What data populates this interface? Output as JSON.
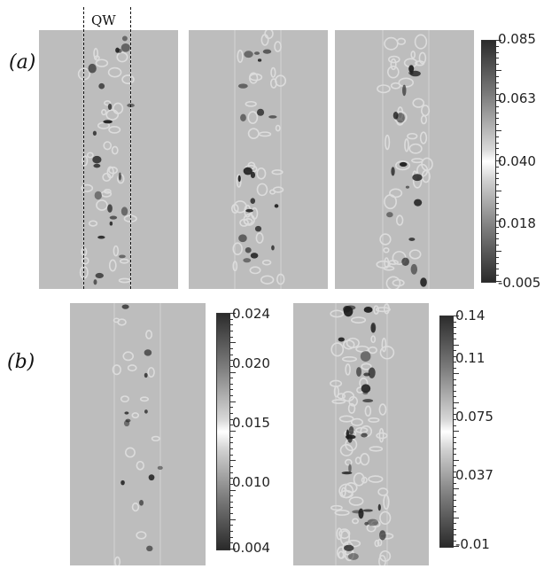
{
  "labels": {
    "a": "(a)",
    "b": "(b)",
    "qw": "QW"
  },
  "colorbars": {
    "a": [
      "0.085",
      "0.063",
      "0.040",
      "0.018",
      "-0.005"
    ],
    "b1": [
      "0.024",
      "0.020",
      "0.015",
      "0.010",
      "0.004"
    ],
    "b2": [
      "0.14",
      "0.11",
      "0.075",
      "0.037",
      "-0.01"
    ]
  },
  "colors": {
    "background": "#bdbdbd",
    "dark_spot": "#1e1e1e",
    "light_ring": "#dcdcdc"
  }
}
